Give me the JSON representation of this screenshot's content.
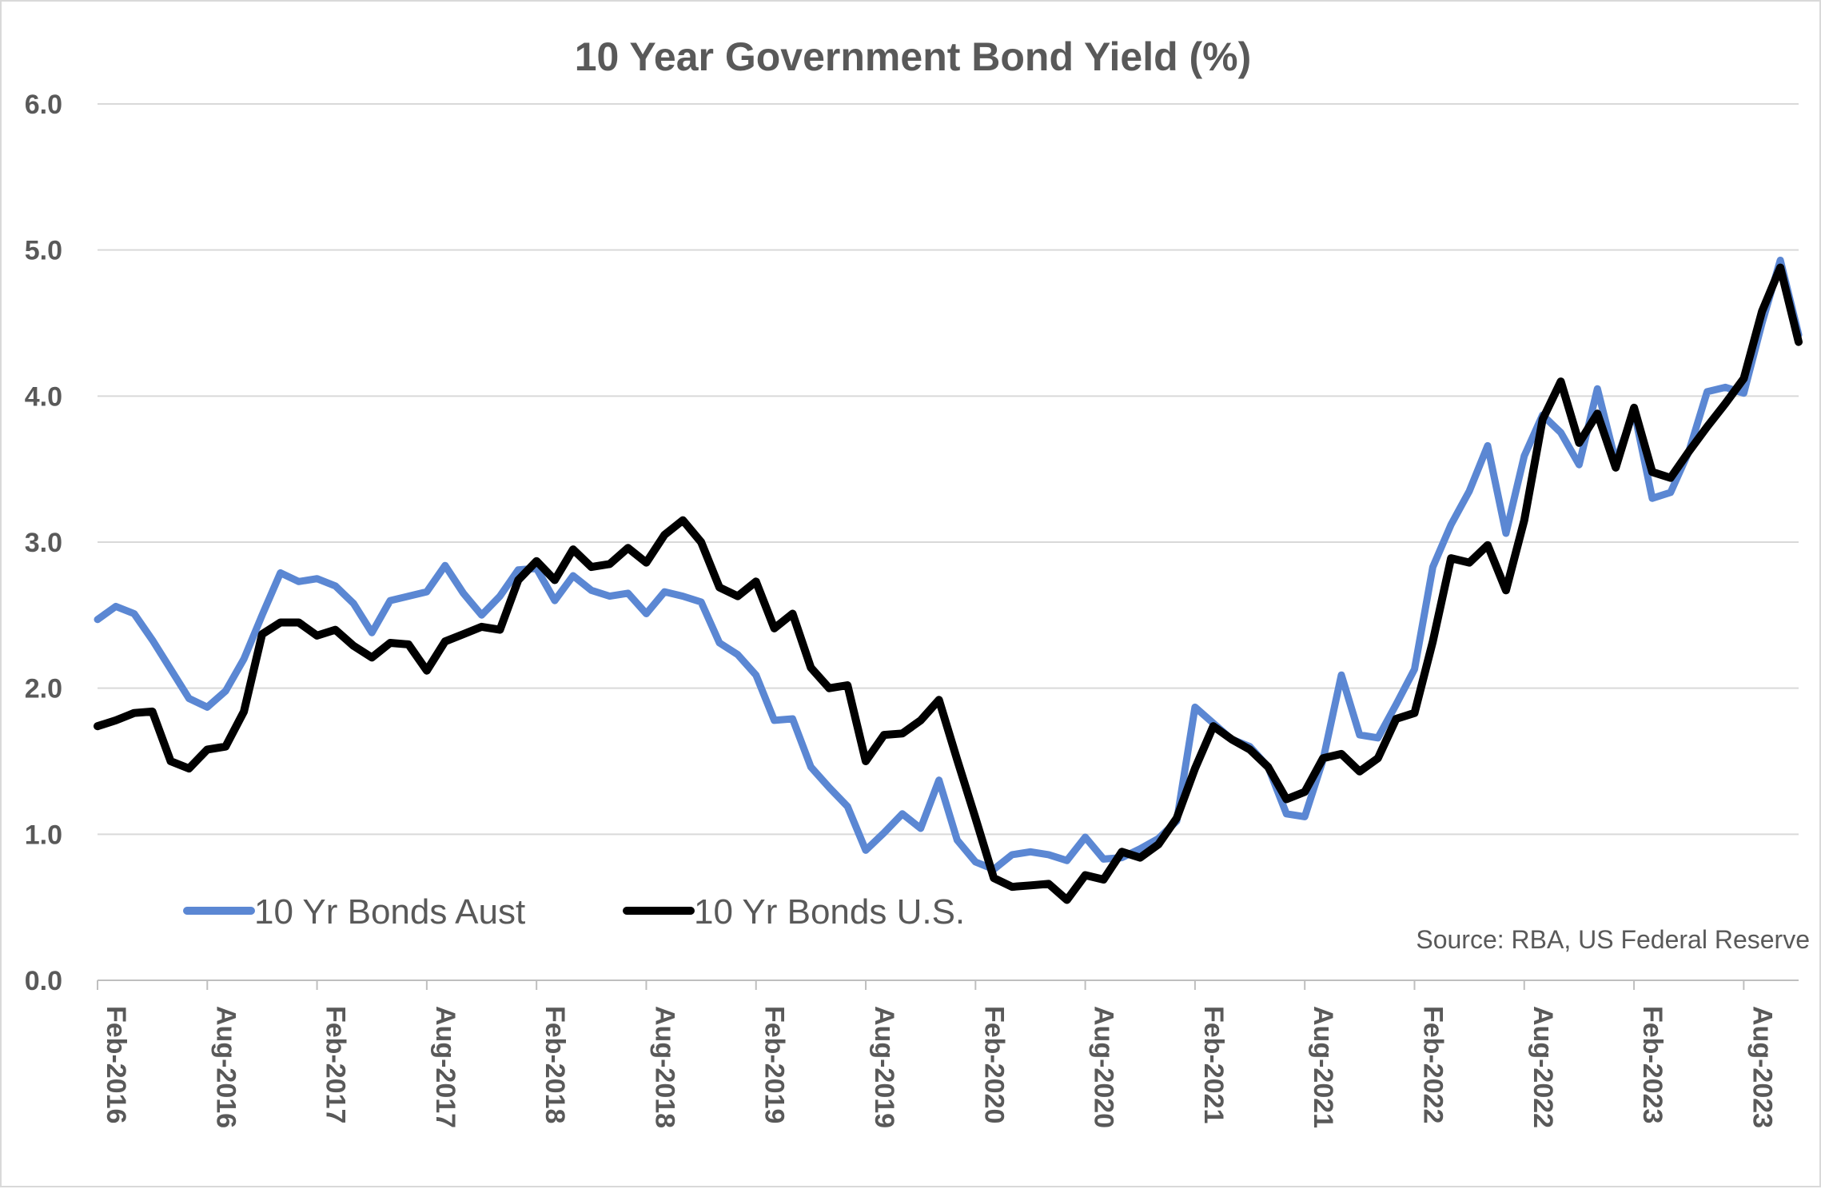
{
  "chart_data": {
    "type": "line",
    "title": "10 Year Government Bond Yield (%)",
    "xlabel": "",
    "ylabel": "",
    "ylim": [
      0,
      6
    ],
    "yticks": [
      "0.0",
      "1.0",
      "2.0",
      "3.0",
      "4.0",
      "5.0",
      "6.0"
    ],
    "xticks": [
      "Feb-2016",
      "Aug-2016",
      "Feb-2017",
      "Aug-2017",
      "Feb-2018",
      "Aug-2018",
      "Feb-2019",
      "Aug-2019",
      "Feb-2020",
      "Aug-2020",
      "Feb-2021",
      "Aug-2021",
      "Feb-2022",
      "Aug-2022",
      "Feb-2023",
      "Aug-2023"
    ],
    "x_start": "Feb-2016",
    "x_end": "Nov-2023",
    "grid": "horizontal",
    "legend_position": "bottom-left",
    "source": "Source: RBA, US Federal Reserve",
    "series": [
      {
        "name": "10 Yr Bonds Aust",
        "color": "#5b87d3",
        "values": [
          2.47,
          2.56,
          2.51,
          2.33,
          2.13,
          1.93,
          1.87,
          1.98,
          2.2,
          2.5,
          2.79,
          2.73,
          2.75,
          2.7,
          2.58,
          2.38,
          2.6,
          2.63,
          2.66,
          2.84,
          2.65,
          2.5,
          2.63,
          2.81,
          2.82,
          2.6,
          2.77,
          2.67,
          2.63,
          2.65,
          2.51,
          2.66,
          2.63,
          2.59,
          2.31,
          2.23,
          2.09,
          1.78,
          1.79,
          1.46,
          1.32,
          1.19,
          0.89,
          1.01,
          1.14,
          1.04,
          1.37,
          0.96,
          0.81,
          0.76,
          0.86,
          0.88,
          0.86,
          0.82,
          0.98,
          0.83,
          0.84,
          0.9,
          0.97,
          1.09,
          1.87,
          1.76,
          1.65,
          1.6,
          1.46,
          1.14,
          1.12,
          1.51,
          2.09,
          1.68,
          1.66,
          1.89,
          2.13,
          2.83,
          3.12,
          3.35,
          3.66,
          3.06,
          3.59,
          3.87,
          3.75,
          3.53,
          4.05,
          3.55,
          3.9,
          3.3,
          3.34,
          3.62,
          4.03,
          4.06,
          4.02,
          4.5,
          4.93,
          4.42
        ]
      },
      {
        "name": "10 Yr Bonds U.S.",
        "color": "#000000",
        "values": [
          1.74,
          1.78,
          1.83,
          1.84,
          1.5,
          1.45,
          1.58,
          1.6,
          1.84,
          2.37,
          2.45,
          2.45,
          2.36,
          2.4,
          2.29,
          2.21,
          2.31,
          2.3,
          2.12,
          2.32,
          2.37,
          2.42,
          2.4,
          2.74,
          2.87,
          2.74,
          2.95,
          2.83,
          2.85,
          2.96,
          2.86,
          3.05,
          3.15,
          3.0,
          2.69,
          2.63,
          2.73,
          2.41,
          2.51,
          2.14,
          2.0,
          2.02,
          1.5,
          1.68,
          1.69,
          1.78,
          1.92,
          1.51,
          1.11,
          0.7,
          0.64,
          0.65,
          0.66,
          0.55,
          0.72,
          0.69,
          0.88,
          0.84,
          0.93,
          1.11,
          1.45,
          1.74,
          1.65,
          1.58,
          1.46,
          1.24,
          1.29,
          1.52,
          1.55,
          1.43,
          1.52,
          1.79,
          1.83,
          2.32,
          2.89,
          2.86,
          2.98,
          2.67,
          3.15,
          3.84,
          4.1,
          3.68,
          3.88,
          3.51,
          3.92,
          3.48,
          3.44,
          3.62,
          3.79,
          3.95,
          4.12,
          4.58,
          4.88,
          4.37
        ]
      }
    ]
  }
}
